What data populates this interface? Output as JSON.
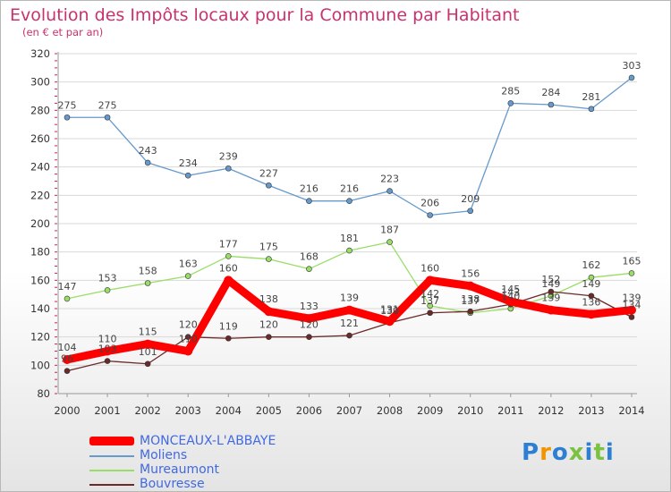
{
  "chart_data": {
    "type": "line",
    "title": "Evolution des Impôts locaux pour la Commune par Habitant",
    "subtitle": "(en € et par an)",
    "x": [
      "2000",
      "2001",
      "2002",
      "2003",
      "2004",
      "2005",
      "2006",
      "2007",
      "2008",
      "2009",
      "2010",
      "2011",
      "2012",
      "2013",
      "2014"
    ],
    "ylim": [
      80,
      320
    ],
    "yticks": [
      80,
      100,
      120,
      140,
      160,
      180,
      200,
      220,
      240,
      260,
      280,
      300,
      320
    ],
    "series": [
      {
        "name": "MONCEAUX-L'ABBAYE",
        "color": "#ff0000",
        "values": [
          104,
          110,
          115,
          110,
          160,
          138,
          133,
          139,
          131,
          160,
          156,
          145,
          139,
          136,
          139
        ],
        "labels": [
          "104",
          "110",
          "115",
          "110",
          "160",
          "138",
          "133",
          "139",
          "131",
          "160",
          "156",
          "145",
          "139",
          "136",
          "139"
        ]
      },
      {
        "name": "Moliens",
        "color": "#6699cc",
        "values": [
          275,
          275,
          243,
          234,
          239,
          227,
          216,
          216,
          223,
          206,
          209,
          285,
          284,
          281,
          303
        ],
        "labels": [
          "275",
          "275",
          "243",
          "234",
          "239",
          "227",
          "216",
          "216",
          "223",
          "206",
          "209",
          "285",
          "284",
          "281",
          "303"
        ]
      },
      {
        "name": "Mureaumont",
        "color": "#99dd66",
        "values": [
          147,
          153,
          158,
          163,
          177,
          175,
          168,
          181,
          187,
          142,
          137,
          140,
          149,
          162,
          165
        ],
        "labels": [
          "147",
          "153",
          "158",
          "163",
          "177",
          "175",
          "168",
          "181",
          "187",
          "142",
          "137",
          "140",
          "149",
          "162",
          "165"
        ]
      },
      {
        "name": "Bouvresse",
        "color": "#6b2a2a",
        "values": [
          96,
          103,
          101,
          120,
          119,
          120,
          120,
          121,
          130,
          137,
          138,
          143,
          152,
          149,
          134
        ],
        "labels": [
          "96",
          "103",
          "101",
          "120",
          "119",
          "120",
          "120",
          "121",
          "130",
          "137",
          "138",
          "143",
          "152",
          "149",
          "134"
        ]
      }
    ]
  },
  "legend": {
    "items": [
      {
        "name": "MONCEAUX-L'ABBAYE",
        "color": "#ff0000"
      },
      {
        "name": "Moliens",
        "color": "#6699cc"
      },
      {
        "name": "Mureaumont",
        "color": "#99dd66"
      },
      {
        "name": "Bouvresse",
        "color": "#6b2a2a"
      }
    ]
  },
  "logo": {
    "text": "Proxiti",
    "colors": [
      "#2d7fd3",
      "#f29400",
      "#2d7fd3",
      "#7cc242",
      "#2d7fd3",
      "#7cc242",
      "#2d7fd3"
    ]
  }
}
